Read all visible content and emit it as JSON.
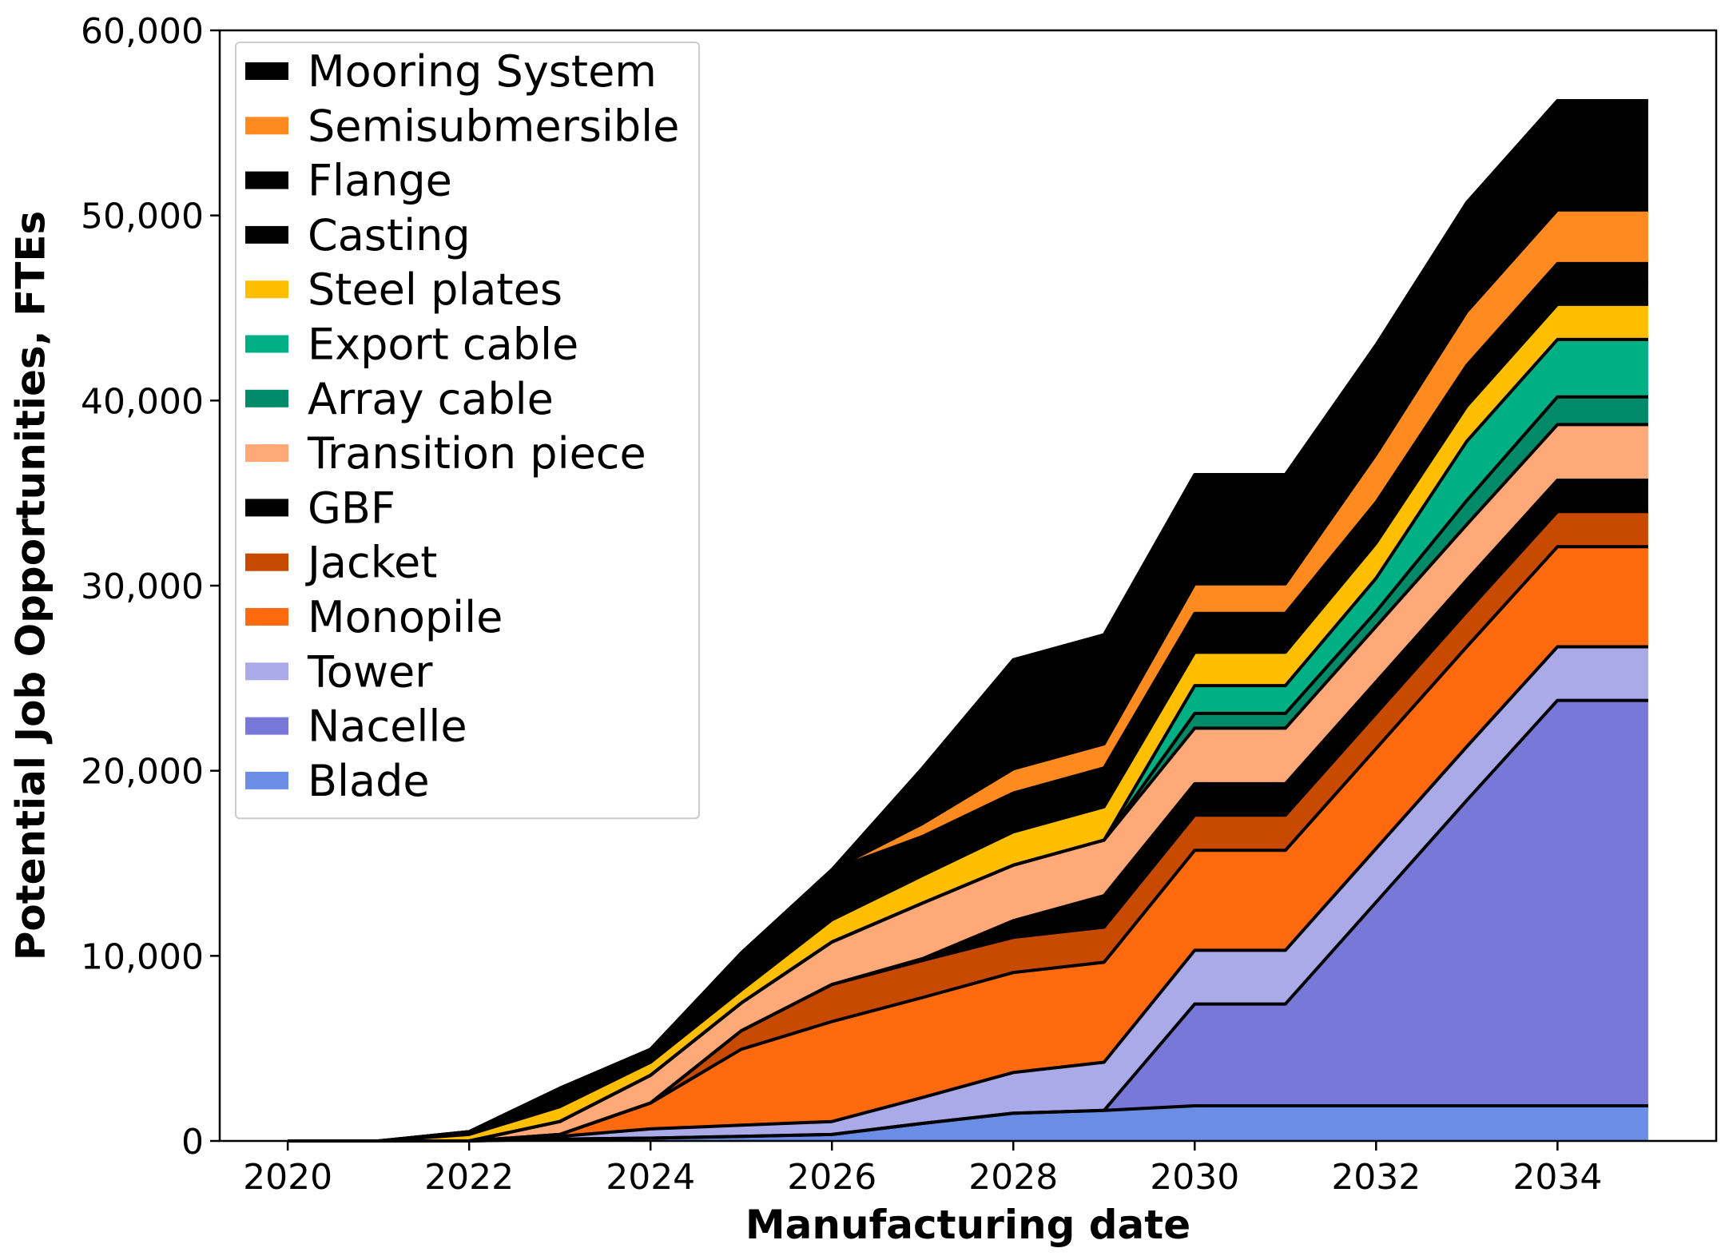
{
  "chart_data": {
    "type": "area",
    "stacked": true,
    "xlabel": "Manufacturing date",
    "ylabel": "Potential Job Opportunities, FTEs",
    "xlim": [
      2019.25,
      2035.75
    ],
    "ylim": [
      0,
      60000
    ],
    "x_ticks": [
      2020,
      2022,
      2024,
      2026,
      2028,
      2030,
      2032,
      2034
    ],
    "x_tick_labels": [
      "2020",
      "2022",
      "2024",
      "2026",
      "2028",
      "2030",
      "2032",
      "2034"
    ],
    "y_ticks": [
      0,
      10000,
      20000,
      30000,
      40000,
      50000,
      60000
    ],
    "y_tick_labels": [
      "0",
      "10,000",
      "20,000",
      "30,000",
      "40,000",
      "50,000",
      "60,000"
    ],
    "grid": false,
    "legend_position": "top-left",
    "x": [
      2020,
      2021,
      2022,
      2023,
      2024,
      2025,
      2026,
      2027,
      2028,
      2029,
      2030,
      2031,
      2032,
      2033,
      2034,
      2035
    ],
    "series": [
      {
        "name": "Blade",
        "color": "#6a8ee6",
        "values": [
          0,
          0,
          0,
          100,
          150,
          250,
          350,
          950,
          1500,
          1650,
          1900,
          1900,
          1900,
          1900,
          1900,
          1900
        ]
      },
      {
        "name": "Nacelle",
        "color": "#7878d8",
        "values": [
          0,
          0,
          0,
          0,
          0,
          0,
          0,
          0,
          0,
          0,
          5500,
          5500,
          11000,
          16500,
          21900,
          21900
        ]
      },
      {
        "name": "Tower",
        "color": "#aaaae8",
        "values": [
          0,
          0,
          0,
          150,
          500,
          600,
          700,
          1400,
          2200,
          2600,
          2900,
          2900,
          2900,
          2900,
          2900,
          2900
        ]
      },
      {
        "name": "Monopile",
        "color": "#ff6a0f",
        "values": [
          0,
          0,
          0,
          100,
          1400,
          4100,
          5400,
          5400,
          5400,
          5400,
          5400,
          5400,
          5400,
          5400,
          5400,
          5400
        ]
      },
      {
        "name": "Jacket",
        "color": "#c84a00",
        "values": [
          0,
          0,
          0,
          0,
          0,
          1000,
          2000,
          2000,
          1900,
          1900,
          1900,
          1900,
          1900,
          1900,
          1900,
          1900
        ]
      },
      {
        "name": "GBF",
        "color": "#000000",
        "values": [
          0,
          0,
          0,
          0,
          0,
          0,
          0,
          100,
          900,
          1700,
          1700,
          1700,
          1700,
          1700,
          1700,
          1700
        ]
      },
      {
        "name": "Transition piece",
        "color": "#ffa878",
        "values": [
          0,
          0,
          0,
          700,
          1500,
          1500,
          2300,
          3000,
          3000,
          3000,
          3000,
          3000,
          3000,
          3000,
          3000,
          3000
        ]
      },
      {
        "name": "Array cable",
        "color": "#008a68",
        "values": [
          0,
          0,
          0,
          0,
          0,
          0,
          0,
          0,
          0,
          0,
          800,
          800,
          800,
          1300,
          1500,
          1500
        ]
      },
      {
        "name": "Export cable",
        "color": "#00b085",
        "values": [
          0,
          0,
          0,
          0,
          0,
          0,
          0,
          0,
          0,
          0,
          1500,
          1500,
          1800,
          3200,
          3100,
          3100
        ]
      },
      {
        "name": "Steel plates",
        "color": "#ffbf00",
        "values": [
          0,
          0,
          350,
          800,
          700,
          700,
          1200,
          1500,
          1800,
          1800,
          1800,
          1800,
          1900,
          1900,
          1900,
          1900
        ]
      },
      {
        "name": "Casting",
        "color": "#000000",
        "values": [
          0,
          0,
          80,
          300,
          300,
          700,
          1000,
          1000,
          1100,
          1100,
          1100,
          1100,
          1200,
          1200,
          1200,
          1200
        ]
      },
      {
        "name": "Flange",
        "color": "#000000",
        "values": [
          0,
          0,
          70,
          700,
          400,
          1300,
          1700,
          1100,
          1000,
          1000,
          1000,
          1000,
          1000,
          1000,
          1000,
          1000
        ]
      },
      {
        "name": "Semisubmersible",
        "color": "#ff8a1f",
        "values": [
          0,
          0,
          0,
          0,
          0,
          0,
          0,
          700,
          1300,
          1300,
          1600,
          1600,
          2600,
          2900,
          2900,
          2900
        ]
      },
      {
        "name": "Mooring System",
        "color": "#000000",
        "values": [
          0,
          0,
          0,
          0,
          0,
          0,
          0,
          3000,
          5900,
          5900,
          5900,
          5900,
          5900,
          5900,
          5900,
          5900
        ]
      }
    ]
  }
}
